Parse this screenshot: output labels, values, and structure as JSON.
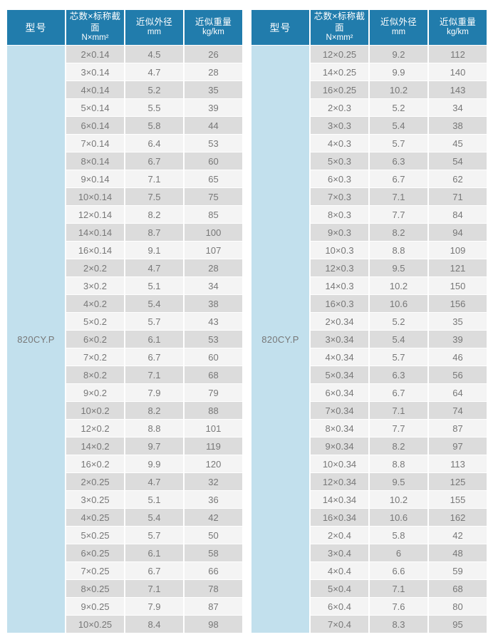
{
  "colors": {
    "header_bg": "#217CAC",
    "model_col_bg": "#C2E0ED",
    "row_odd_bg": "#DCDCDC",
    "row_even_bg": "#F4F4F4",
    "header_text": "#FFFFFF",
    "cell_text": "#777777",
    "model_text": "#4D4D4D",
    "page_bg": "#FFFFFF"
  },
  "headers": {
    "model": "型号",
    "columns": [
      {
        "line1": "芯数×标称截面",
        "line2": "N×mm²"
      },
      {
        "line1": "近似外径",
        "line2": "mm"
      },
      {
        "line1": "近似重量",
        "line2": "kg/km"
      }
    ]
  },
  "tables": [
    {
      "model": "820CY.P",
      "rows": [
        [
          "2×0.14",
          "4.5",
          "26"
        ],
        [
          "3×0.14",
          "4.7",
          "28"
        ],
        [
          "4×0.14",
          "5.2",
          "35"
        ],
        [
          "5×0.14",
          "5.5",
          "39"
        ],
        [
          "6×0.14",
          "5.8",
          "44"
        ],
        [
          "7×0.14",
          "6.4",
          "53"
        ],
        [
          "8×0.14",
          "6.7",
          "60"
        ],
        [
          "9×0.14",
          "7.1",
          "65"
        ],
        [
          "10×0.14",
          "7.5",
          "75"
        ],
        [
          "12×0.14",
          "8.2",
          "85"
        ],
        [
          "14×0.14",
          "8.7",
          "100"
        ],
        [
          "16×0.14",
          "9.1",
          "107"
        ],
        [
          "2×0.2",
          "4.7",
          "28"
        ],
        [
          "3×0.2",
          "5.1",
          "34"
        ],
        [
          "4×0.2",
          "5.4",
          "38"
        ],
        [
          "5×0.2",
          "5.7",
          "43"
        ],
        [
          "6×0.2",
          "6.1",
          "53"
        ],
        [
          "7×0.2",
          "6.7",
          "60"
        ],
        [
          "8×0.2",
          "7.1",
          "68"
        ],
        [
          "9×0.2",
          "7.9",
          "79"
        ],
        [
          "10×0.2",
          "8.2",
          "88"
        ],
        [
          "12×0.2",
          "8.8",
          "101"
        ],
        [
          "14×0.2",
          "9.7",
          "119"
        ],
        [
          "16×0.2",
          "9.9",
          "120"
        ],
        [
          "2×0.25",
          "4.7",
          "32"
        ],
        [
          "3×0.25",
          "5.1",
          "36"
        ],
        [
          "4×0.25",
          "5.4",
          "42"
        ],
        [
          "5×0.25",
          "5.7",
          "50"
        ],
        [
          "6×0.25",
          "6.1",
          "58"
        ],
        [
          "7×0.25",
          "6.7",
          "66"
        ],
        [
          "8×0.25",
          "7.1",
          "78"
        ],
        [
          "9×0.25",
          "7.9",
          "87"
        ],
        [
          "10×0.25",
          "8.4",
          "98"
        ]
      ]
    },
    {
      "model": "820CY.P",
      "rows": [
        [
          "12×0.25",
          "9.2",
          "112"
        ],
        [
          "14×0.25",
          "9.9",
          "140"
        ],
        [
          "16×0.25",
          "10.2",
          "143"
        ],
        [
          "2×0.3",
          "5.2",
          "34"
        ],
        [
          "3×0.3",
          "5.4",
          "38"
        ],
        [
          "4×0.3",
          "5.7",
          "45"
        ],
        [
          "5×0.3",
          "6.3",
          "54"
        ],
        [
          "6×0.3",
          "6.7",
          "62"
        ],
        [
          "7×0.3",
          "7.1",
          "71"
        ],
        [
          "8×0.3",
          "7.7",
          "84"
        ],
        [
          "9×0.3",
          "8.2",
          "94"
        ],
        [
          "10×0.3",
          "8.8",
          "109"
        ],
        [
          "12×0.3",
          "9.5",
          "121"
        ],
        [
          "14×0.3",
          "10.2",
          "150"
        ],
        [
          "16×0.3",
          "10.6",
          "156"
        ],
        [
          "2×0.34",
          "5.2",
          "35"
        ],
        [
          "3×0.34",
          "5.4",
          "39"
        ],
        [
          "4×0.34",
          "5.7",
          "46"
        ],
        [
          "5×0.34",
          "6.3",
          "56"
        ],
        [
          "6×0.34",
          "6.7",
          "64"
        ],
        [
          "7×0.34",
          "7.1",
          "74"
        ],
        [
          "8×0.34",
          "7.7",
          "87"
        ],
        [
          "9×0.34",
          "8.2",
          "97"
        ],
        [
          "10×0.34",
          "8.8",
          "113"
        ],
        [
          "12×0.34",
          "9.5",
          "125"
        ],
        [
          "14×0.34",
          "10.2",
          "155"
        ],
        [
          "16×0.34",
          "10.6",
          "162"
        ],
        [
          "2×0.4",
          "5.8",
          "42"
        ],
        [
          "3×0.4",
          "6",
          "48"
        ],
        [
          "4×0.4",
          "6.6",
          "59"
        ],
        [
          "5×0.4",
          "7.1",
          "68"
        ],
        [
          "6×0.4",
          "7.6",
          "80"
        ],
        [
          "7×0.4",
          "8.3",
          "95"
        ]
      ]
    }
  ]
}
